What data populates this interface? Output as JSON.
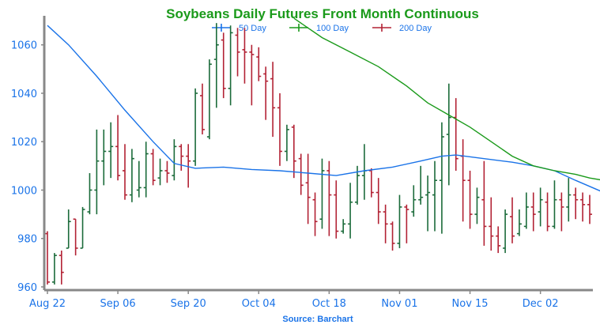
{
  "chart_data": {
    "type": "ohlc",
    "title": "Soybeans Daily Futures Front Month Continuous",
    "source": "Source: Barchart",
    "ylim": [
      959,
      1072
    ],
    "yticks": [
      960,
      980,
      1000,
      1020,
      1040,
      1060
    ],
    "grid": false,
    "legend_position": "top-center",
    "colors": {
      "title": "#1a9a1a",
      "axis_text": "#1a73e8",
      "source": "#1a73e8",
      "axis": "#888888",
      "up": "#1b6b3a",
      "down": "#b22234"
    },
    "xticks": [
      {
        "label": "Aug 22",
        "index": 0
      },
      {
        "label": "Sep 06",
        "index": 10
      },
      {
        "label": "Sep 20",
        "index": 20
      },
      {
        "label": "Oct 04",
        "index": 30
      },
      {
        "label": "Oct 18",
        "index": 40
      },
      {
        "label": "Nov 01",
        "index": 50
      },
      {
        "label": "Nov 15",
        "index": 60
      },
      {
        "label": "Dec 02",
        "index": 70
      }
    ],
    "bars": [
      [
        982,
        983,
        961,
        962
      ],
      [
        962,
        974,
        961,
        973
      ],
      [
        973,
        975,
        961,
        966
      ],
      [
        976,
        992,
        976,
        987
      ],
      [
        988,
        988,
        973,
        976
      ],
      [
        976,
        993,
        976,
        992
      ],
      [
        991,
        1007,
        990,
        1000
      ],
      [
        1000,
        1025,
        990,
        1012
      ],
      [
        1012,
        1025,
        1002,
        1016
      ],
      [
        1016,
        1028,
        1005,
        1018
      ],
      [
        1018,
        1031,
        1004,
        1006
      ],
      [
        1008,
        1019,
        996,
        998
      ],
      [
        998,
        1017,
        995,
        1013
      ],
      [
        1000,
        1012,
        997,
        1001
      ],
      [
        1001,
        1020,
        997,
        1015
      ],
      [
        1015,
        1017,
        1002,
        1004
      ],
      [
        1005,
        1013,
        1002,
        1008
      ],
      [
        1008,
        1012,
        1003,
        1007
      ],
      [
        1006,
        1021,
        1004,
        1018
      ],
      [
        1018,
        1019,
        1008,
        1014
      ],
      [
        1014,
        1019,
        1001,
        1012
      ],
      [
        1012,
        1042,
        1010,
        1040
      ],
      [
        1039,
        1044,
        1023,
        1025
      ],
      [
        1022,
        1054,
        1021,
        1052
      ],
      [
        1054,
        1069,
        1034,
        1060
      ],
      [
        1062,
        1065,
        1038,
        1042
      ],
      [
        1042,
        1068,
        1035,
        1065
      ],
      [
        1064,
        1067,
        1047,
        1057
      ],
      [
        1058,
        1067,
        1044,
        1057
      ],
      [
        1057,
        1060,
        1035,
        1056
      ],
      [
        1055,
        1059,
        1045,
        1047
      ],
      [
        1048,
        1051,
        1029,
        1045
      ],
      [
        1046,
        1053,
        1022,
        1034
      ],
      [
        1034,
        1040,
        1010,
        1016
      ],
      [
        1016,
        1027,
        1012,
        1025
      ],
      [
        1026,
        1027,
        1005,
        1012
      ],
      [
        1013,
        1015,
        998,
        1002
      ],
      [
        1003,
        1015,
        986,
        997
      ],
      [
        996,
        999,
        981,
        987
      ],
      [
        988,
        1013,
        984,
        1008
      ],
      [
        1008,
        1012,
        981,
        998
      ],
      [
        998,
        1004,
        980,
        983
      ],
      [
        983,
        988,
        982,
        986
      ],
      [
        986,
        1003,
        980,
        995
      ],
      [
        995,
        1010,
        994,
        1006
      ],
      [
        1006,
        1019,
        996,
        1008
      ],
      [
        1008,
        1009,
        997,
        999
      ],
      [
        999,
        1005,
        986,
        991
      ],
      [
        991,
        994,
        978,
        986
      ],
      [
        986,
        987,
        975,
        978
      ],
      [
        978,
        998,
        976,
        993
      ],
      [
        993,
        994,
        978,
        992
      ],
      [
        991,
        1002,
        989,
        996
      ],
      [
        996,
        1010,
        994,
        997
      ],
      [
        998,
        1006,
        983,
        999
      ],
      [
        998,
        1012,
        983,
        1004
      ],
      [
        1004,
        1028,
        982,
        1022
      ],
      [
        1023,
        1044,
        1002,
        1030
      ],
      [
        1030,
        1038,
        1008,
        1013
      ],
      [
        1014,
        1021,
        987,
        1004
      ],
      [
        1004,
        1008,
        984,
        990
      ],
      [
        990,
        1001,
        986,
        997
      ],
      [
        996,
        1012,
        977,
        985
      ],
      [
        985,
        997,
        975,
        981
      ],
      [
        981,
        985,
        974,
        977
      ],
      [
        976,
        992,
        974,
        990
      ],
      [
        989,
        997,
        978,
        981
      ],
      [
        982,
        992,
        981,
        986
      ],
      [
        985,
        999,
        984,
        993
      ],
      [
        993,
        999,
        983,
        990
      ],
      [
        991,
        1001,
        985,
        996
      ],
      [
        995,
        999,
        983,
        985
      ],
      [
        985,
        1004,
        984,
        996
      ],
      [
        996,
        999,
        983,
        993
      ],
      [
        993,
        1005,
        987,
        998
      ],
      [
        998,
        1001,
        988,
        996
      ],
      [
        996,
        999,
        987,
        994
      ],
      [
        994,
        998,
        986,
        990
      ]
    ],
    "series": [
      {
        "name": "50 Day",
        "color": "#1a73e8",
        "points": [
          [
            0,
            1068
          ],
          [
            3,
            1060
          ],
          [
            7,
            1047
          ],
          [
            11,
            1033
          ],
          [
            15,
            1020
          ],
          [
            18,
            1011
          ],
          [
            21,
            1009
          ],
          [
            25,
            1009.5
          ],
          [
            29,
            1008.5
          ],
          [
            33,
            1008
          ],
          [
            37,
            1007
          ],
          [
            41,
            1006
          ],
          [
            45,
            1008
          ],
          [
            49,
            1009.5
          ],
          [
            53,
            1012
          ],
          [
            56,
            1014
          ],
          [
            58,
            1014.5
          ],
          [
            62,
            1013
          ],
          [
            66,
            1011.5
          ],
          [
            69,
            1010
          ],
          [
            72,
            1008
          ],
          [
            75,
            1004
          ],
          [
            79,
            999
          ]
        ]
      },
      {
        "name": "100 Day",
        "color": "#1a9a1a",
        "points": [
          [
            35,
            1071
          ],
          [
            39,
            1063
          ],
          [
            43,
            1057
          ],
          [
            47,
            1051
          ],
          [
            51,
            1043
          ],
          [
            54,
            1036
          ],
          [
            57,
            1031
          ],
          [
            60,
            1026
          ],
          [
            63,
            1020
          ],
          [
            66,
            1014
          ],
          [
            69,
            1010
          ],
          [
            72,
            1008
          ],
          [
            75,
            1006.5
          ],
          [
            77,
            1005
          ],
          [
            79,
            1004
          ]
        ]
      },
      {
        "name": "200 Day",
        "color": "#b22234",
        "points": []
      }
    ]
  }
}
